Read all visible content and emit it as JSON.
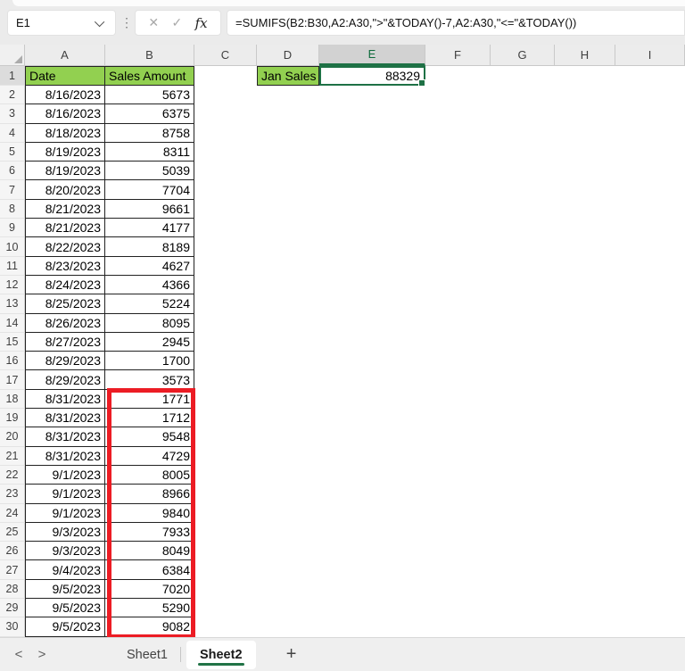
{
  "name_box": {
    "value": "E1"
  },
  "formula_bar": {
    "formula": "=SUMIFS(B2:B30,A2:A30,\">\"&TODAY()-7,A2:A30,\"<=\"&TODAY())"
  },
  "icons": {
    "cancel": "✕",
    "enter": "✓",
    "fx": "fx",
    "dots": "⋮",
    "nav_left": "<",
    "nav_right": ">",
    "add_sheet": "+"
  },
  "grid": {
    "column_labels": [
      "A",
      "B",
      "C",
      "D",
      "E",
      "F",
      "G",
      "H",
      "I"
    ],
    "selected_column": "E",
    "selected_row": "1"
  },
  "table": {
    "header": {
      "date_label": "Date",
      "amount_label": "Sales Amount"
    },
    "rows": [
      {
        "n": 2,
        "date": "8/16/2023",
        "amount": "5673"
      },
      {
        "n": 3,
        "date": "8/16/2023",
        "amount": "6375"
      },
      {
        "n": 4,
        "date": "8/18/2023",
        "amount": "8758"
      },
      {
        "n": 5,
        "date": "8/19/2023",
        "amount": "8311"
      },
      {
        "n": 6,
        "date": "8/19/2023",
        "amount": "5039"
      },
      {
        "n": 7,
        "date": "8/20/2023",
        "amount": "7704"
      },
      {
        "n": 8,
        "date": "8/21/2023",
        "amount": "9661"
      },
      {
        "n": 9,
        "date": "8/21/2023",
        "amount": "4177"
      },
      {
        "n": 10,
        "date": "8/22/2023",
        "amount": "8189"
      },
      {
        "n": 11,
        "date": "8/23/2023",
        "amount": "4627"
      },
      {
        "n": 12,
        "date": "8/24/2023",
        "amount": "4366"
      },
      {
        "n": 13,
        "date": "8/25/2023",
        "amount": "5224"
      },
      {
        "n": 14,
        "date": "8/26/2023",
        "amount": "8095"
      },
      {
        "n": 15,
        "date": "8/27/2023",
        "amount": "2945"
      },
      {
        "n": 16,
        "date": "8/29/2023",
        "amount": "1700"
      },
      {
        "n": 17,
        "date": "8/29/2023",
        "amount": "3573"
      },
      {
        "n": 18,
        "date": "8/31/2023",
        "amount": "1771"
      },
      {
        "n": 19,
        "date": "8/31/2023",
        "amount": "1712"
      },
      {
        "n": 20,
        "date": "8/31/2023",
        "amount": "9548"
      },
      {
        "n": 21,
        "date": "8/31/2023",
        "amount": "4729"
      },
      {
        "n": 22,
        "date": "9/1/2023",
        "amount": "8005"
      },
      {
        "n": 23,
        "date": "9/1/2023",
        "amount": "8966"
      },
      {
        "n": 24,
        "date": "9/1/2023",
        "amount": "9840"
      },
      {
        "n": 25,
        "date": "9/3/2023",
        "amount": "7933"
      },
      {
        "n": 26,
        "date": "9/3/2023",
        "amount": "8049"
      },
      {
        "n": 27,
        "date": "9/4/2023",
        "amount": "6384"
      },
      {
        "n": 28,
        "date": "9/5/2023",
        "amount": "7020"
      },
      {
        "n": 29,
        "date": "9/5/2023",
        "amount": "5290"
      },
      {
        "n": 30,
        "date": "9/5/2023",
        "amount": "9082"
      }
    ]
  },
  "summary": {
    "label": "Jan Sales"
  },
  "selection": {
    "cell": "E1",
    "value": "88329"
  },
  "highlight": {
    "range": "B18:B30",
    "color": "#EC1C24"
  },
  "tabs": {
    "sheets": [
      {
        "label": "Sheet1",
        "active": false
      },
      {
        "label": "Sheet2",
        "active": true
      }
    ]
  },
  "colors": {
    "header_fill_green": "#92D050",
    "selection_green": "#1E7145",
    "red_border": "#EC1C24"
  }
}
